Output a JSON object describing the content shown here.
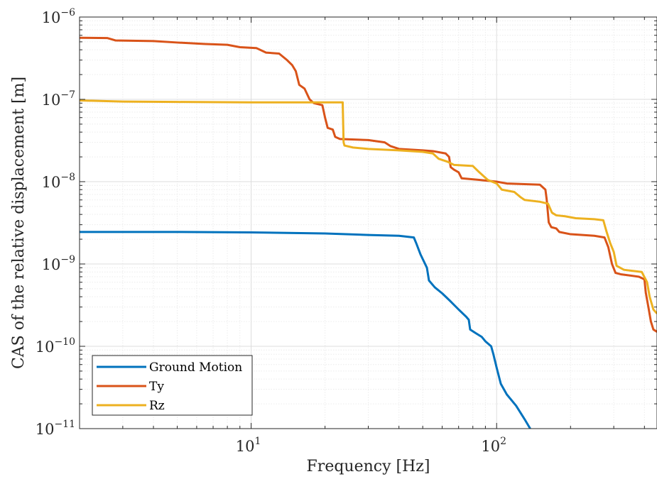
{
  "chart_data": {
    "type": "line",
    "xlabel": "Frequency [Hz]",
    "ylabel": "CAS of the relative displacement [m]",
    "xscale": "log",
    "yscale": "log",
    "xlim": [
      2,
      450
    ],
    "ylim": [
      1e-11,
      1e-06
    ],
    "grid": true,
    "legend_position": "bottom-left",
    "x_ticks": [
      {
        "value": 10,
        "base": "10",
        "exp": "1"
      },
      {
        "value": 100,
        "base": "10",
        "exp": "2"
      }
    ],
    "y_ticks": [
      {
        "value": 1e-06,
        "base": "10",
        "exp": "−6"
      },
      {
        "value": 1e-07,
        "base": "10",
        "exp": "−7"
      },
      {
        "value": 1e-08,
        "base": "10",
        "exp": "−8"
      },
      {
        "value": 1e-09,
        "base": "10",
        "exp": "−9"
      },
      {
        "value": 1e-10,
        "base": "10",
        "exp": "−10"
      },
      {
        "value": 1e-11,
        "base": "10",
        "exp": "−11"
      }
    ],
    "series": [
      {
        "name": "Ground Motion",
        "color": "#0072BD",
        "points": [
          [
            2,
            2.45e-09
          ],
          [
            5,
            2.45e-09
          ],
          [
            10,
            2.42e-09
          ],
          [
            20,
            2.35e-09
          ],
          [
            30,
            2.25e-09
          ],
          [
            40,
            2.2e-09
          ],
          [
            46,
            2.1e-09
          ],
          [
            47,
            1.8e-09
          ],
          [
            49,
            1.3e-09
          ],
          [
            52,
            9e-10
          ],
          [
            53,
            6.3e-10
          ],
          [
            56,
            5.2e-10
          ],
          [
            60,
            4.4e-10
          ],
          [
            65,
            3.5e-10
          ],
          [
            70,
            2.8e-10
          ],
          [
            75,
            2.3e-10
          ],
          [
            77,
            2.1e-10
          ],
          [
            78,
            1.6e-10
          ],
          [
            82,
            1.45e-10
          ],
          [
            87,
            1.3e-10
          ],
          [
            90,
            1.15e-10
          ],
          [
            95,
            1e-10
          ],
          [
            97,
            8e-11
          ],
          [
            100,
            5.5e-11
          ],
          [
            104,
            3.5e-11
          ],
          [
            110,
            2.6e-11
          ],
          [
            120,
            1.9e-11
          ],
          [
            130,
            1.3e-11
          ],
          [
            137,
            1e-11
          ]
        ]
      },
      {
        "name": "Ty",
        "color": "#D95319",
        "points": [
          [
            2,
            5.6e-07
          ],
          [
            2.6,
            5.55e-07
          ],
          [
            2.8,
            5.2e-07
          ],
          [
            4,
            5.1e-07
          ],
          [
            5,
            4.9e-07
          ],
          [
            6.5,
            4.7e-07
          ],
          [
            8,
            4.6e-07
          ],
          [
            9,
            4.3e-07
          ],
          [
            10.5,
            4.2e-07
          ],
          [
            11.5,
            3.7e-07
          ],
          [
            13,
            3.6e-07
          ],
          [
            14,
            3e-07
          ],
          [
            14.7,
            2.6e-07
          ],
          [
            15.2,
            2.2e-07
          ],
          [
            15.7,
            1.5e-07
          ],
          [
            16.5,
            1.35e-07
          ],
          [
            17.3,
            1e-07
          ],
          [
            18,
            9e-08
          ],
          [
            19.5,
            8.5e-08
          ],
          [
            20,
            6e-08
          ],
          [
            20.5,
            4.5e-08
          ],
          [
            21.5,
            4.3e-08
          ],
          [
            22,
            3.5e-08
          ],
          [
            23,
            3.3e-08
          ],
          [
            30,
            3.2e-08
          ],
          [
            35,
            3e-08
          ],
          [
            37,
            2.7e-08
          ],
          [
            40,
            2.5e-08
          ],
          [
            50,
            2.4e-08
          ],
          [
            55,
            2.35e-08
          ],
          [
            62,
            2.2e-08
          ],
          [
            64,
            2e-08
          ],
          [
            65,
            1.5e-08
          ],
          [
            67,
            1.4e-08
          ],
          [
            70,
            1.3e-08
          ],
          [
            72,
            1.1e-08
          ],
          [
            85,
            1.05e-08
          ],
          [
            100,
            1e-08
          ],
          [
            110,
            9.5e-09
          ],
          [
            150,
            9.2e-09
          ],
          [
            158,
            8e-09
          ],
          [
            160,
            6e-09
          ],
          [
            163,
            3.2e-09
          ],
          [
            167,
            2.8e-09
          ],
          [
            175,
            2.7e-09
          ],
          [
            180,
            2.45e-09
          ],
          [
            200,
            2.3e-09
          ],
          [
            250,
            2.2e-09
          ],
          [
            275,
            2.1e-09
          ],
          [
            285,
            1.6e-09
          ],
          [
            295,
            1e-09
          ],
          [
            305,
            7.8e-10
          ],
          [
            320,
            7.5e-10
          ],
          [
            380,
            7e-10
          ],
          [
            400,
            6.5e-10
          ],
          [
            405,
            4.5e-10
          ],
          [
            415,
            3e-10
          ],
          [
            425,
            2e-10
          ],
          [
            435,
            1.6e-10
          ],
          [
            450,
            1.5e-10
          ]
        ]
      },
      {
        "name": "Rz",
        "color": "#EDB120",
        "points": [
          [
            2,
            9.7e-08
          ],
          [
            3,
            9.4e-08
          ],
          [
            5,
            9.3e-08
          ],
          [
            10,
            9.2e-08
          ],
          [
            20,
            9.2e-08
          ],
          [
            23.6,
            9.2e-08
          ],
          [
            23.8,
            3e-08
          ],
          [
            24,
            2.75e-08
          ],
          [
            26,
            2.6e-08
          ],
          [
            30,
            2.5e-08
          ],
          [
            40,
            2.4e-08
          ],
          [
            50,
            2.3e-08
          ],
          [
            55,
            2.2e-08
          ],
          [
            58,
            1.9e-08
          ],
          [
            63,
            1.75e-08
          ],
          [
            67,
            1.6e-08
          ],
          [
            80,
            1.55e-08
          ],
          [
            85,
            1.3e-08
          ],
          [
            92,
            1.05e-08
          ],
          [
            100,
            9.5e-09
          ],
          [
            105,
            8e-09
          ],
          [
            118,
            7.5e-09
          ],
          [
            125,
            6.5e-09
          ],
          [
            130,
            6e-09
          ],
          [
            150,
            5.7e-09
          ],
          [
            162,
            5.4e-09
          ],
          [
            168,
            4.2e-09
          ],
          [
            175,
            3.9e-09
          ],
          [
            190,
            3.8e-09
          ],
          [
            210,
            3.6e-09
          ],
          [
            250,
            3.5e-09
          ],
          [
            272,
            3.4e-09
          ],
          [
            280,
            2.5e-09
          ],
          [
            290,
            1.8e-09
          ],
          [
            300,
            1.4e-09
          ],
          [
            308,
            9.5e-10
          ],
          [
            330,
            8.5e-10
          ],
          [
            390,
            8e-10
          ],
          [
            410,
            6e-10
          ],
          [
            420,
            4e-10
          ],
          [
            435,
            2.8e-10
          ],
          [
            450,
            2.5e-10
          ]
        ]
      }
    ]
  }
}
